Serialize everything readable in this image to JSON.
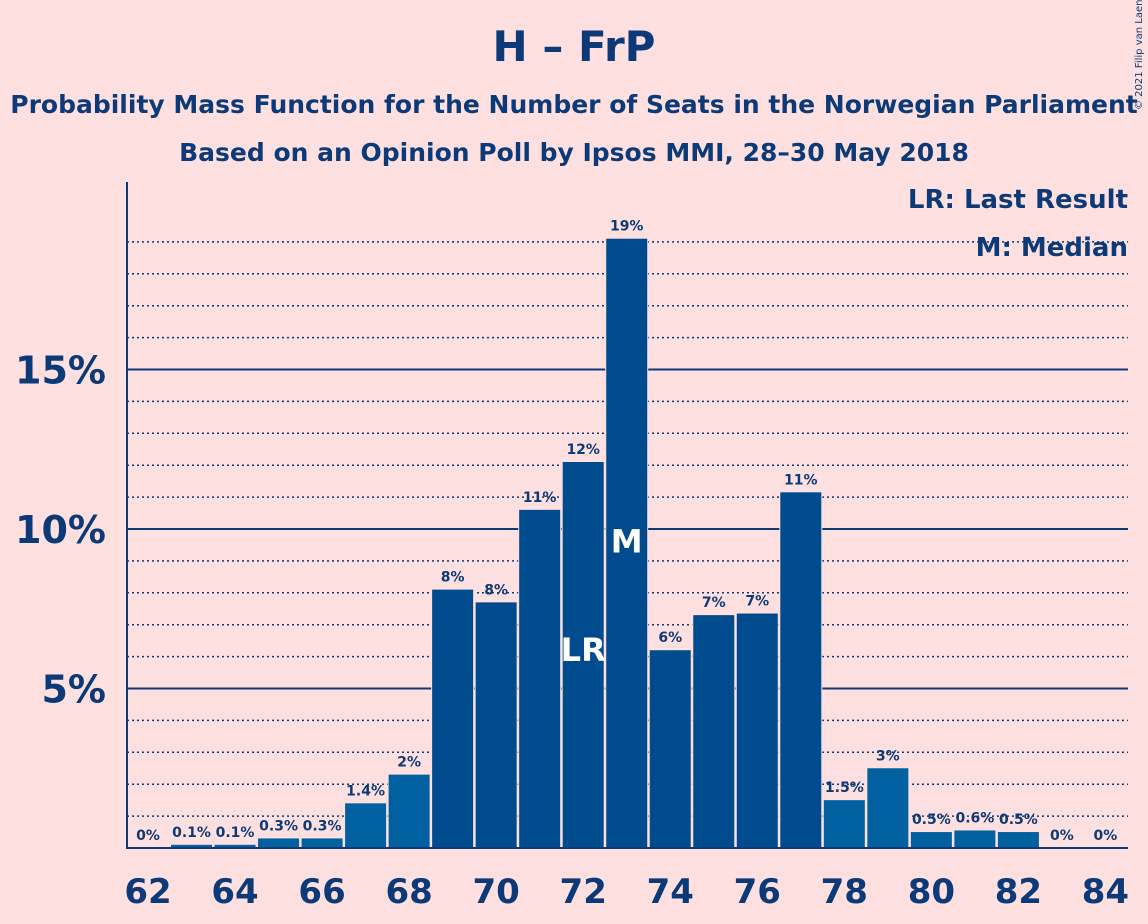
{
  "title": "H – FrP",
  "subtitle": "Probability Mass Function for the Number of Seats in the Norwegian Parliament",
  "subtitle2": "Based on an Opinion Poll by Ipsos MMI, 28–30 May 2018",
  "copyright": "© 2021 Filip van Laenen",
  "legend": {
    "lr": "LR: Last Result",
    "m": "M: Median"
  },
  "colors": {
    "bar_dark": "#004b8d",
    "bar_light": "#0060a0",
    "axis": "#0c3a78",
    "background": "#ffe0e0"
  },
  "chart_data": {
    "type": "bar",
    "x": [
      62,
      63,
      64,
      65,
      66,
      67,
      68,
      69,
      70,
      71,
      72,
      73,
      74,
      75,
      76,
      77,
      78,
      79,
      80,
      81,
      82,
      83,
      84
    ],
    "values": [
      0,
      0.1,
      0.1,
      0.3,
      0.3,
      1.4,
      2.3,
      8.1,
      7.7,
      10.6,
      12.1,
      19.1,
      6.2,
      7.3,
      7.35,
      11.15,
      1.5,
      2.5,
      0.5,
      0.55,
      0.5,
      0,
      0
    ],
    "data_labels": [
      "0%",
      "0.1%",
      "0.1%",
      "0.3%",
      "0.3%",
      "1.4%",
      "2%",
      "8%",
      "8%",
      "11%",
      "12%",
      "19%",
      "6%",
      "7%",
      "7%",
      "11%",
      "1.5%",
      "3%",
      "0.5%",
      "0.6%",
      "0.5%",
      "0%",
      "0%"
    ],
    "x_ticks": [
      "62",
      "64",
      "66",
      "68",
      "70",
      "72",
      "74",
      "76",
      "78",
      "80",
      "82",
      "84"
    ],
    "y_ticks": [
      "5%",
      "10%",
      "15%"
    ],
    "ylim": [
      0,
      20.5
    ],
    "last_result": {
      "x": 72,
      "label": "LR"
    },
    "median": {
      "x": 73,
      "label": "M"
    },
    "grid": true
  }
}
